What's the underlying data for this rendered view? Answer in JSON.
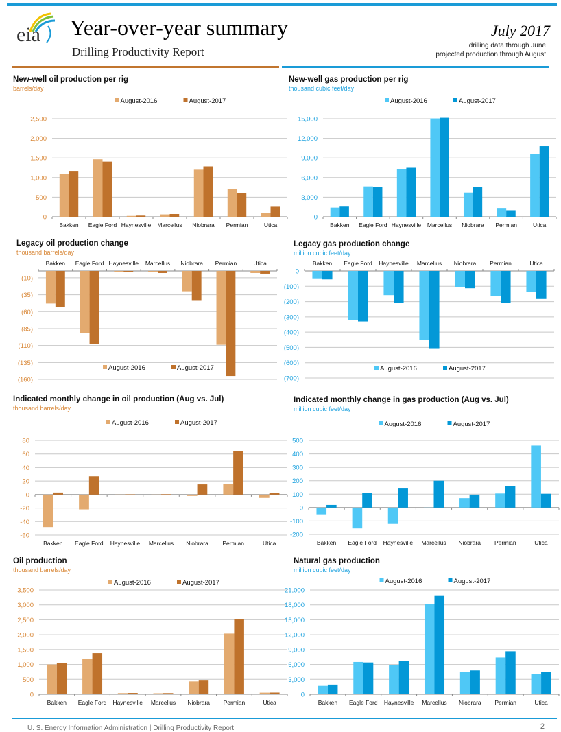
{
  "header": {
    "logo_text": "eia",
    "title": "Year-over-year summary",
    "subtitle": "Drilling Productivity Report",
    "date": "July 2017",
    "note_line1": "drilling data through June",
    "note_line2": "projected production through August"
  },
  "footer": {
    "text": "U. S. Energy Information Administration  |  Drilling Productivity Report",
    "page_number": "2"
  },
  "colors": {
    "oil_2016": "#E3AA6F",
    "oil_2017": "#BF722C",
    "gas_2016": "#4FC8F6",
    "gas_2017": "#0398D7",
    "oil_axis_text": "#D9893A",
    "gas_axis_text": "#1FA3DF",
    "gridline": "#C8C8C8"
  },
  "chart_data": [
    {
      "id": "new-well-oil",
      "type": "bar",
      "title": "New-well oil production per rig",
      "unit": "barrels/day",
      "palette": "oil",
      "categories": [
        "Bakken",
        "Eagle Ford",
        "Haynesville",
        "Marcellus",
        "Niobrara",
        "Permian",
        "Utica"
      ],
      "series": [
        {
          "name": "August-2016",
          "values": [
            1095,
            1465,
            22,
            60,
            1200,
            700,
            100
          ]
        },
        {
          "name": "August-2017",
          "values": [
            1170,
            1405,
            30,
            70,
            1285,
            595,
            255
          ]
        }
      ],
      "ylim": [
        0,
        2500
      ],
      "yticks": [
        0,
        500,
        1000,
        1500,
        2000,
        2500
      ],
      "ytick_labels": [
        "0",
        "500",
        "1,000",
        "1,500",
        "2,000",
        "2,500"
      ],
      "grid": true,
      "legend": "top-center",
      "category_axis": "bottom"
    },
    {
      "id": "new-well-gas",
      "type": "bar",
      "title": "New-well gas production per rig",
      "unit": "thousand cubic feet/day",
      "palette": "gas",
      "categories": [
        "Bakken",
        "Eagle Ford",
        "Haynesville",
        "Marcellus",
        "Niobrara",
        "Permian",
        "Utica"
      ],
      "series": [
        {
          "name": "August-2016",
          "values": [
            1400,
            4650,
            7250,
            15050,
            3700,
            1350,
            9650
          ]
        },
        {
          "name": "August-2017",
          "values": [
            1550,
            4600,
            7500,
            15150,
            4600,
            1000,
            10800
          ]
        }
      ],
      "ylim": [
        0,
        15000
      ],
      "yticks": [
        0,
        3000,
        6000,
        9000,
        12000,
        15000
      ],
      "ytick_labels": [
        "0",
        "3,000",
        "6,000",
        "9,000",
        "12,000",
        "15,000"
      ],
      "grid": true,
      "legend": "top-center",
      "category_axis": "bottom"
    },
    {
      "id": "legacy-oil",
      "type": "bar",
      "title": "Legacy oil production change",
      "unit": "thousand barrels/day",
      "palette": "oil",
      "categories": [
        "Bakken",
        "Eagle Ford",
        "Haynesville",
        "Marcellus",
        "Niobrara",
        "Permian",
        "Utica"
      ],
      "series": [
        {
          "name": "August-2016",
          "values": [
            -48,
            -92,
            -1,
            -2,
            -30,
            -109,
            -3
          ]
        },
        {
          "name": "August-2017",
          "values": [
            -53,
            -108,
            -1,
            -3,
            -44,
            -155,
            -4
          ]
        }
      ],
      "ylim": [
        -160,
        0
      ],
      "yticks": [
        -10,
        -35,
        -60,
        -85,
        -110,
        -135,
        -160
      ],
      "ytick_labels": [
        "(10)",
        "(35)",
        "(60)",
        "(85)",
        "(110)",
        "(135)",
        "(160)"
      ],
      "grid": true,
      "legend": "bottom-center",
      "category_axis": "top"
    },
    {
      "id": "legacy-gas",
      "type": "bar",
      "title": "Legacy gas production change",
      "unit": "million cubic feet/day",
      "palette": "gas",
      "categories": [
        "Bakken",
        "Eagle Ford",
        "Haynesville",
        "Marcellus",
        "Niobrara",
        "Permian",
        "Utica"
      ],
      "series": [
        {
          "name": "August-2016",
          "values": [
            -48,
            -320,
            -158,
            -452,
            -105,
            -162,
            -137
          ]
        },
        {
          "name": "August-2017",
          "values": [
            -55,
            -330,
            -207,
            -505,
            -113,
            -208,
            -183
          ]
        }
      ],
      "ylim": [
        -700,
        0
      ],
      "yticks": [
        0,
        -100,
        -200,
        -300,
        -400,
        -500,
        -600,
        -700
      ],
      "ytick_labels": [
        "0",
        "(100)",
        "(200)",
        "(300)",
        "(400)",
        "(500)",
        "(600)",
        "(700)"
      ],
      "grid": true,
      "legend": "bottom-center",
      "category_axis": "top"
    },
    {
      "id": "monthly-oil",
      "type": "bar",
      "title": "Indicated monthly change in oil production (Aug vs. Jul)",
      "unit": "thousand barrels/day",
      "palette": "oil",
      "categories": [
        "Bakken",
        "Eagle Ford",
        "Haynesville",
        "Marcellus",
        "Niobrara",
        "Permian",
        "Utica"
      ],
      "series": [
        {
          "name": "August-2016",
          "values": [
            -48,
            -22,
            -0.3,
            0,
            -2,
            16,
            -5
          ]
        },
        {
          "name": "August-2017",
          "values": [
            3,
            27,
            0.3,
            0.5,
            15,
            64,
            2
          ]
        }
      ],
      "ylim": [
        -60,
        80
      ],
      "yticks": [
        -60,
        -40,
        -20,
        0,
        20,
        40,
        60,
        80
      ],
      "ytick_labels": [
        "-60",
        "-40",
        "-20",
        "0",
        "20",
        "40",
        "60",
        "80"
      ],
      "grid": true,
      "legend": "top-center",
      "category_axis": "bottom"
    },
    {
      "id": "monthly-gas",
      "type": "bar",
      "title": "Indicated monthly change in gas production (Aug vs. Jul)",
      "unit": "million cubic feet/day",
      "palette": "gas",
      "categories": [
        "Bakken",
        "Eagle Ford",
        "Haynesville",
        "Marcellus",
        "Niobrara",
        "Permian",
        "Utica"
      ],
      "series": [
        {
          "name": "August-2016",
          "values": [
            -50,
            -155,
            -122,
            -3,
            70,
            105,
            462
          ]
        },
        {
          "name": "August-2017",
          "values": [
            20,
            110,
            142,
            200,
            97,
            160,
            103
          ]
        }
      ],
      "ylim": [
        -200,
        500
      ],
      "yticks": [
        -200,
        -100,
        0,
        100,
        200,
        300,
        400,
        500
      ],
      "ytick_labels": [
        "-200",
        "-100",
        "0",
        "100",
        "200",
        "300",
        "400",
        "500"
      ],
      "grid": true,
      "legend": "top-center",
      "category_axis": "bottom"
    },
    {
      "id": "oil-production",
      "type": "bar",
      "title": "Oil production",
      "unit": "thousand barrels/day",
      "palette": "oil",
      "categories": [
        "Bakken",
        "Eagle Ford",
        "Haynesville",
        "Marcellus",
        "Niobrara",
        "Permian",
        "Utica"
      ],
      "series": [
        {
          "name": "August-2016",
          "values": [
            1000,
            1185,
            40,
            35,
            430,
            2040,
            55
          ]
        },
        {
          "name": "August-2017",
          "values": [
            1040,
            1380,
            45,
            40,
            480,
            2530,
            58
          ]
        }
      ],
      "ylim": [
        0,
        3500
      ],
      "yticks": [
        0,
        500,
        1000,
        1500,
        2000,
        2500,
        3000,
        3500
      ],
      "ytick_labels": [
        "0",
        "500",
        "1,000",
        "1,500",
        "2,000",
        "2,500",
        "3,000",
        "3,500"
      ],
      "grid": true,
      "legend": "top-center",
      "category_axis": "bottom"
    },
    {
      "id": "gas-production",
      "type": "bar",
      "title": "Natural gas production",
      "unit": "million cubic feet/day",
      "palette": "gas",
      "categories": [
        "Bakken",
        "Eagle Ford",
        "Haynesville",
        "Marcellus",
        "Niobrara",
        "Permian",
        "Utica"
      ],
      "series": [
        {
          "name": "August-2016",
          "values": [
            1700,
            6500,
            5900,
            18200,
            4500,
            7400,
            4100
          ]
        },
        {
          "name": "August-2017",
          "values": [
            1950,
            6400,
            6700,
            19800,
            4800,
            8650,
            4550
          ]
        }
      ],
      "ylim": [
        0,
        21000
      ],
      "yticks": [
        0,
        3000,
        6000,
        9000,
        12000,
        15000,
        18000,
        21000
      ],
      "ytick_labels": [
        "0",
        "3,000",
        "6,000",
        "9,000",
        "12,000",
        "15,000",
        "18,000",
        "21,000"
      ],
      "grid": true,
      "legend": "top-center",
      "category_axis": "bottom"
    }
  ]
}
